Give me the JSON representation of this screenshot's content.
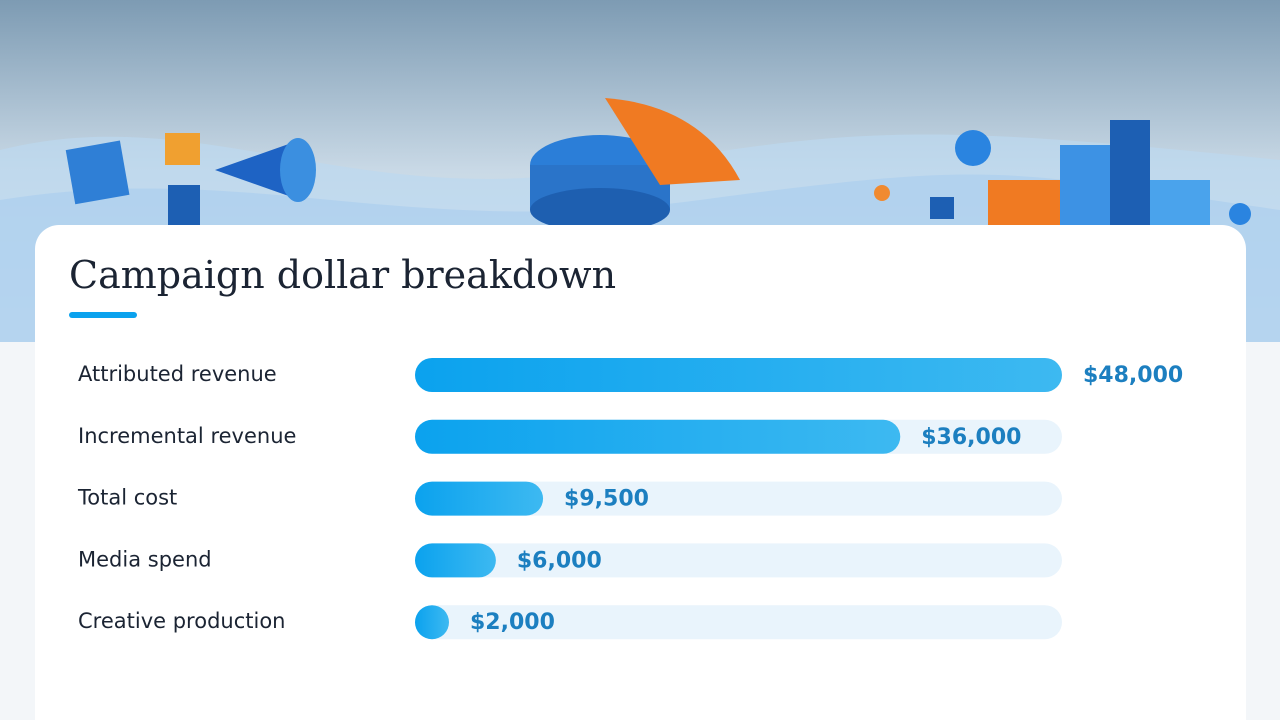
{
  "chart_data": {
    "type": "hbar",
    "title": "Campaign dollar breakdown",
    "categories": [
      "Attributed revenue",
      "Incremental revenue",
      "Total cost",
      "Media spend",
      "Creative production"
    ],
    "values": [
      48000,
      36000,
      9500,
      6000,
      2000
    ],
    "value_labels": [
      "$48,000",
      "$36,000",
      "$9,500",
      "$6,000",
      "$2,000"
    ],
    "color": "#0ba2ee",
    "xlim": [
      0,
      48000
    ]
  }
}
